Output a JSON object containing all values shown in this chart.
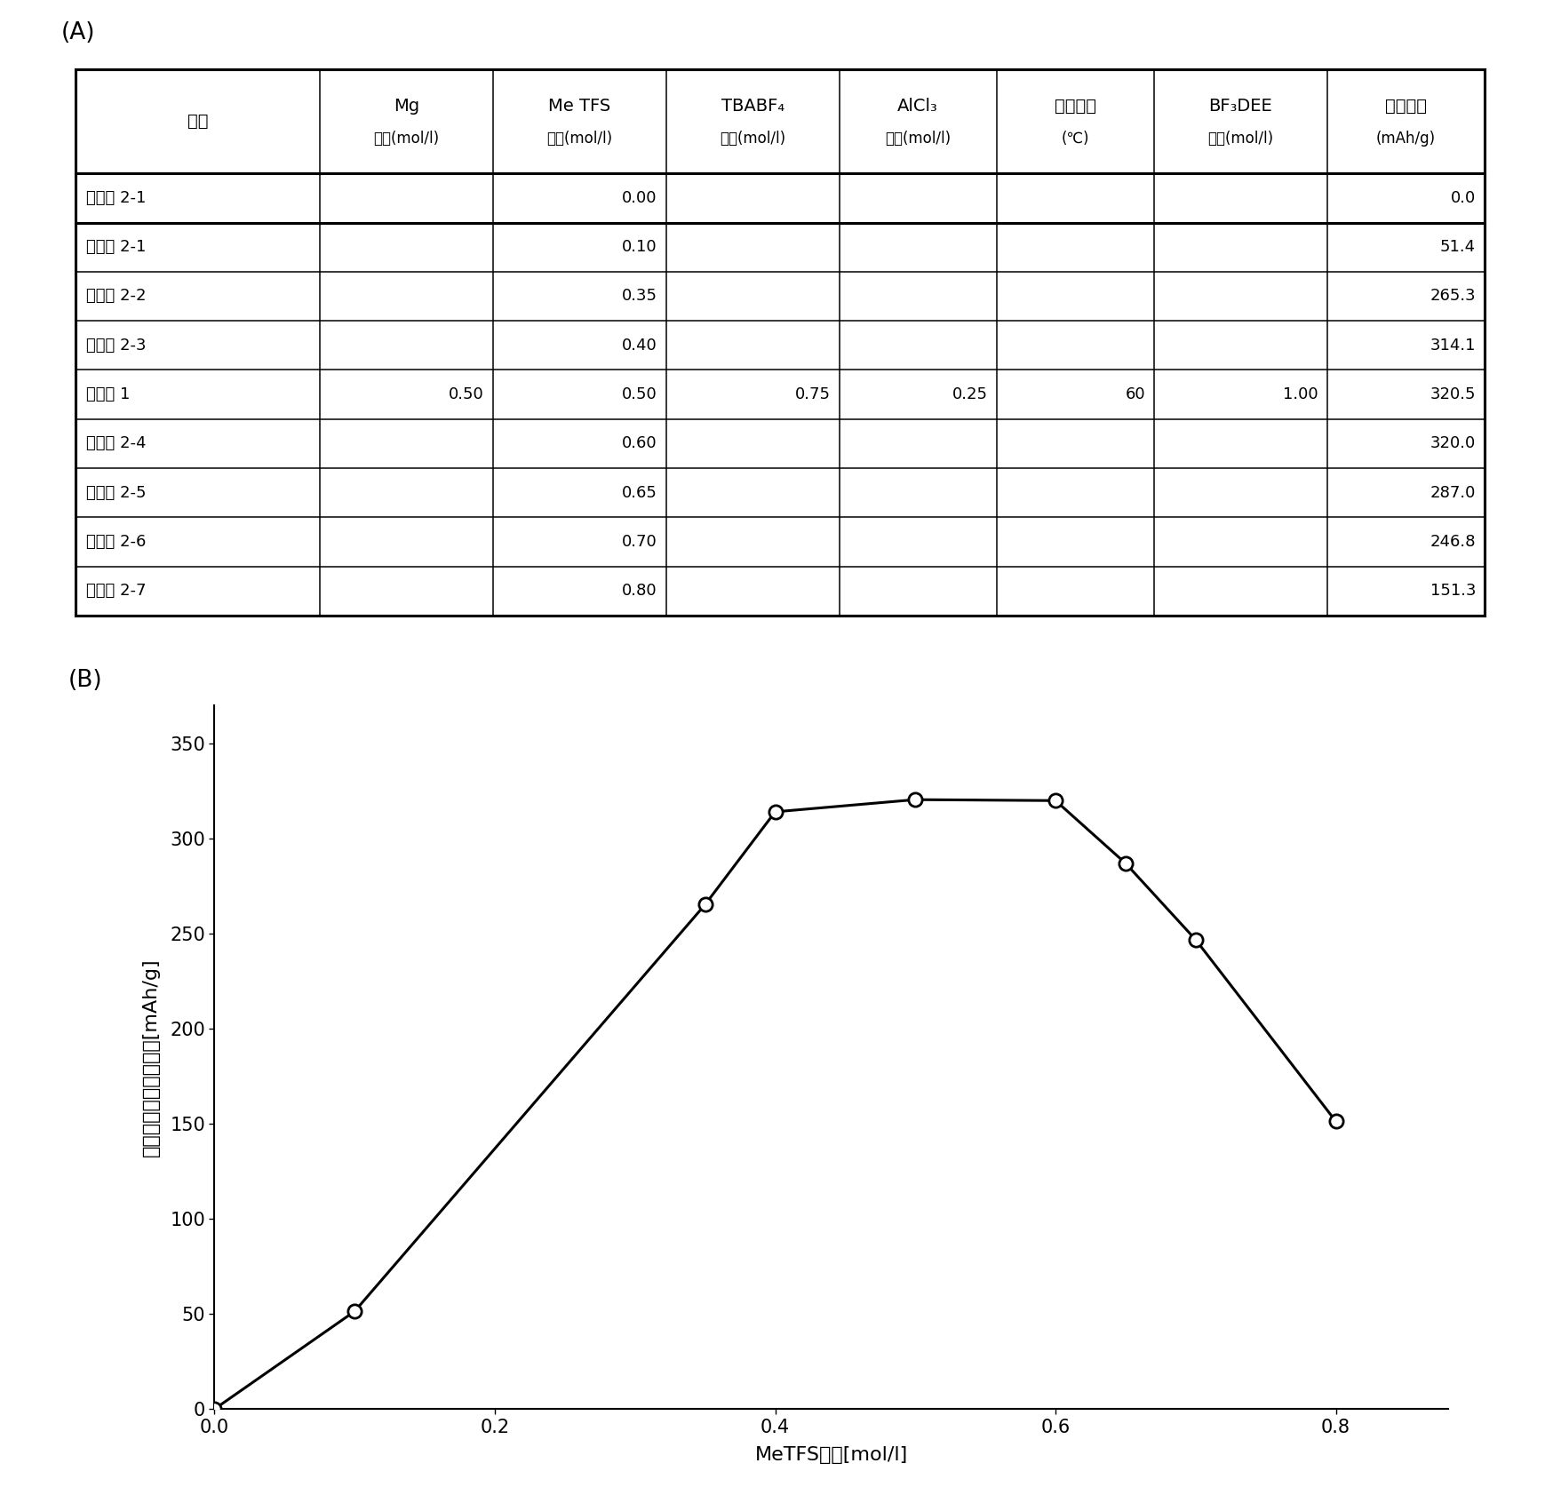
{
  "label_A": "(A)",
  "label_B": "(B)",
  "table": {
    "col_headers_line1": [
      "电池",
      "Mg",
      "Me TFS",
      "TBABF₄",
      "AlCl₃",
      "加热温度",
      "BF₃DEE",
      "放电容量"
    ],
    "col_headers_line2": [
      "",
      "浓度(mol/l)",
      "浓度(mol/l)",
      "浓度(mol/l)",
      "浓度(mol/l)",
      "(℃)",
      "浓度(mol/l)",
      "(mAh/g)"
    ],
    "rows": [
      {
        "name": "比较例 2-1",
        "Mg": "",
        "MeTFS": "0.00",
        "TBABF4": "",
        "AlCl3": "",
        "temp": "",
        "BF3DEE": "",
        "capacity": "0.0"
      },
      {
        "name": "实施例 2-1",
        "Mg": "",
        "MeTFS": "0.10",
        "TBABF4": "",
        "AlCl3": "",
        "temp": "",
        "BF3DEE": "",
        "capacity": "51.4"
      },
      {
        "name": "实施例 2-2",
        "Mg": "",
        "MeTFS": "0.35",
        "TBABF4": "",
        "AlCl3": "",
        "temp": "",
        "BF3DEE": "",
        "capacity": "265.3"
      },
      {
        "name": "实施例 2-3",
        "Mg": "",
        "MeTFS": "0.40",
        "TBABF4": "",
        "AlCl3": "",
        "temp": "",
        "BF3DEE": "",
        "capacity": "314.1"
      },
      {
        "name": "实施例 1",
        "Mg": "0.50",
        "MeTFS": "0.50",
        "TBABF4": "0.75",
        "AlCl3": "0.25",
        "temp": "60",
        "BF3DEE": "1.00",
        "capacity": "320.5"
      },
      {
        "name": "实施例 2-4",
        "Mg": "",
        "MeTFS": "0.60",
        "TBABF4": "",
        "AlCl3": "",
        "temp": "",
        "BF3DEE": "",
        "capacity": "320.0"
      },
      {
        "name": "实施例 2-5",
        "Mg": "",
        "MeTFS": "0.65",
        "TBABF4": "",
        "AlCl3": "",
        "temp": "",
        "BF3DEE": "",
        "capacity": "287.0"
      },
      {
        "name": "实施例 2-6",
        "Mg": "",
        "MeTFS": "0.70",
        "TBABF4": "",
        "AlCl3": "",
        "temp": "",
        "BF3DEE": "",
        "capacity": "246.8"
      },
      {
        "name": "实施例 2-7",
        "Mg": "",
        "MeTFS": "0.80",
        "TBABF4": "",
        "AlCl3": "",
        "temp": "",
        "BF3DEE": "",
        "capacity": "151.3"
      }
    ],
    "col_widths_rel": [
      1.55,
      1.1,
      1.1,
      1.1,
      1.0,
      1.0,
      1.1,
      1.0
    ]
  },
  "chart": {
    "x": [
      0.0,
      0.1,
      0.35,
      0.4,
      0.5,
      0.6,
      0.65,
      0.7,
      0.8
    ],
    "y": [
      0.0,
      51.4,
      265.3,
      314.1,
      320.5,
      320.0,
      287.0,
      246.8,
      151.3
    ],
    "xlabel": "MeTFS浓度[mol/l]",
    "ylabel": "正极活性物质放电容量[mAh/g]",
    "xlim": [
      0.0,
      0.88
    ],
    "ylim": [
      0,
      370
    ],
    "xticks": [
      0.0,
      0.2,
      0.4,
      0.6,
      0.8
    ],
    "yticks": [
      0,
      50,
      100,
      150,
      200,
      250,
      300,
      350
    ],
    "marker_facecolor": "white",
    "marker_edgecolor": "black",
    "marker_size": 11,
    "line_color": "black",
    "line_width": 2.2
  }
}
